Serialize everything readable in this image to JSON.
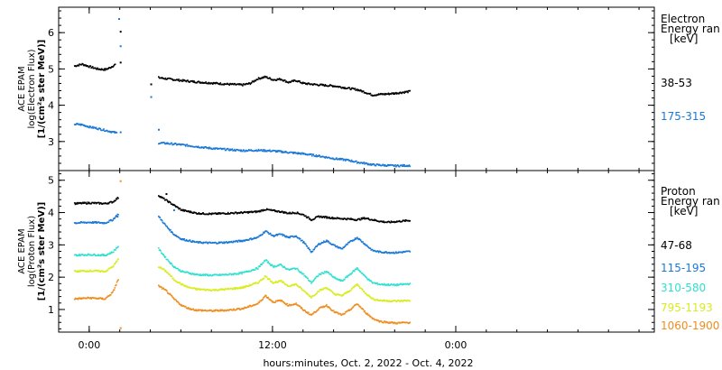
{
  "chart_data": [
    {
      "type": "scatter",
      "panel": "top",
      "ylabel_lines": [
        "ACE EPAM",
        "log(Electron Flux)",
        "[1/(cm²s ster MeV)]"
      ],
      "ylim": [
        2.2,
        6.7
      ],
      "yticks": [
        3,
        4,
        5,
        6
      ],
      "legend_title": [
        "Electron",
        "Energy ran",
        "[keV]"
      ],
      "series": [
        {
          "name": "38-53",
          "color": "#000000",
          "points": [
            [
              -1.0,
              5.1
            ],
            [
              -0.5,
              5.15
            ],
            [
              0.0,
              5.08
            ],
            [
              0.5,
              5.02
            ],
            [
              1.0,
              5.0
            ],
            [
              1.3,
              5.05
            ],
            [
              1.7,
              5.15
            ],
            [
              4.5,
              4.78
            ],
            [
              5.0,
              4.75
            ],
            [
              6.0,
              4.7
            ],
            [
              7.0,
              4.66
            ],
            [
              8.0,
              4.63
            ],
            [
              9.0,
              4.6
            ],
            [
              10.0,
              4.58
            ],
            [
              10.5,
              4.62
            ],
            [
              11.0,
              4.75
            ],
            [
              11.5,
              4.8
            ],
            [
              12.0,
              4.72
            ],
            [
              12.5,
              4.74
            ],
            [
              13.0,
              4.65
            ],
            [
              13.5,
              4.7
            ],
            [
              14.0,
              4.62
            ],
            [
              15.0,
              4.58
            ],
            [
              16.0,
              4.55
            ],
            [
              17.0,
              4.48
            ],
            [
              17.5,
              4.45
            ],
            [
              18.0,
              4.38
            ],
            [
              18.5,
              4.3
            ],
            [
              19.0,
              4.32
            ],
            [
              19.5,
              4.33
            ],
            [
              20.0,
              4.35
            ],
            [
              21.0,
              4.4
            ]
          ]
        },
        {
          "name": "175-315",
          "color": "#1a78d6",
          "points": [
            [
              -1.0,
              3.5
            ],
            [
              -0.5,
              3.48
            ],
            [
              0.0,
              3.42
            ],
            [
              0.5,
              3.38
            ],
            [
              1.0,
              3.33
            ],
            [
              1.5,
              3.28
            ],
            [
              1.8,
              3.25
            ],
            [
              4.5,
              2.98
            ],
            [
              5.0,
              2.97
            ],
            [
              6.0,
              2.93
            ],
            [
              7.0,
              2.88
            ],
            [
              8.0,
              2.83
            ],
            [
              9.0,
              2.8
            ],
            [
              10.0,
              2.77
            ],
            [
              11.0,
              2.78
            ],
            [
              12.0,
              2.76
            ],
            [
              13.0,
              2.72
            ],
            [
              14.0,
              2.68
            ],
            [
              15.0,
              2.62
            ],
            [
              16.0,
              2.55
            ],
            [
              17.0,
              2.5
            ],
            [
              17.5,
              2.45
            ],
            [
              18.0,
              2.42
            ],
            [
              18.5,
              2.38
            ],
            [
              19.0,
              2.37
            ],
            [
              20.0,
              2.35
            ],
            [
              21.0,
              2.36
            ]
          ]
        }
      ],
      "scatter_points": [
        {
          "color": "#1a78d6",
          "xy": [
            [
              1.9,
              6.4
            ],
            [
              2.0,
              5.65
            ],
            [
              4.0,
              4.25
            ],
            [
              4.5,
              3.35
            ],
            [
              2.0,
              3.28
            ]
          ]
        },
        {
          "color": "#000000",
          "xy": [
            [
              2.0,
              6.05
            ],
            [
              4.0,
              4.6
            ],
            [
              2.0,
              5.2
            ]
          ]
        }
      ]
    },
    {
      "type": "scatter",
      "panel": "bottom",
      "ylabel_lines": [
        "ACE EPAM",
        "log(Proton Flux)",
        "[1/(cm²s ster MeV)]"
      ],
      "ylim": [
        0.3,
        5.3
      ],
      "yticks": [
        1,
        2,
        3,
        4,
        5
      ],
      "legend_title": [
        "Proton",
        "Energy ran",
        "[keV]"
      ],
      "series": [
        {
          "name": "47-68",
          "color": "#000000",
          "points": [
            [
              -1.0,
              4.3
            ],
            [
              0.0,
              4.32
            ],
            [
              1.0,
              4.3
            ],
            [
              1.5,
              4.35
            ],
            [
              1.9,
              4.5
            ],
            [
              4.5,
              4.55
            ],
            [
              5.0,
              4.4
            ],
            [
              5.5,
              4.25
            ],
            [
              6.0,
              4.1
            ],
            [
              6.5,
              4.05
            ],
            [
              7.0,
              4.0
            ],
            [
              8.0,
              3.98
            ],
            [
              9.0,
              4.0
            ],
            [
              10.0,
              4.02
            ],
            [
              11.0,
              4.05
            ],
            [
              11.5,
              4.12
            ],
            [
              12.0,
              4.08
            ],
            [
              12.5,
              4.05
            ],
            [
              13.0,
              4.0
            ],
            [
              13.5,
              4.02
            ],
            [
              14.0,
              3.95
            ],
            [
              14.5,
              3.8
            ],
            [
              15.0,
              3.9
            ],
            [
              16.0,
              3.85
            ],
            [
              17.0,
              3.82
            ],
            [
              17.5,
              3.8
            ],
            [
              18.0,
              3.85
            ],
            [
              18.5,
              3.8
            ],
            [
              19.0,
              3.75
            ],
            [
              19.5,
              3.72
            ],
            [
              20.0,
              3.74
            ],
            [
              21.0,
              3.78
            ]
          ]
        },
        {
          "name": "115-195",
          "color": "#1a78d6",
          "points": [
            [
              -1.0,
              3.7
            ],
            [
              0.0,
              3.72
            ],
            [
              1.0,
              3.7
            ],
            [
              1.5,
              3.8
            ],
            [
              1.9,
              4.0
            ],
            [
              4.5,
              3.9
            ],
            [
              5.0,
              3.6
            ],
            [
              5.5,
              3.35
            ],
            [
              6.0,
              3.2
            ],
            [
              6.5,
              3.15
            ],
            [
              7.0,
              3.1
            ],
            [
              8.0,
              3.08
            ],
            [
              9.0,
              3.1
            ],
            [
              10.0,
              3.15
            ],
            [
              11.0,
              3.25
            ],
            [
              11.5,
              3.45
            ],
            [
              12.0,
              3.3
            ],
            [
              12.5,
              3.35
            ],
            [
              13.0,
              3.25
            ],
            [
              13.5,
              3.3
            ],
            [
              14.0,
              3.1
            ],
            [
              14.5,
              2.8
            ],
            [
              15.0,
              3.05
            ],
            [
              15.5,
              3.15
            ],
            [
              16.0,
              3.0
            ],
            [
              16.5,
              2.9
            ],
            [
              17.0,
              3.1
            ],
            [
              17.5,
              3.25
            ],
            [
              18.0,
              3.05
            ],
            [
              18.5,
              2.85
            ],
            [
              19.0,
              2.8
            ],
            [
              20.0,
              2.78
            ],
            [
              21.0,
              2.82
            ]
          ]
        },
        {
          "name": "310-580",
          "color": "#30e0d0",
          "points": [
            [
              -1.0,
              2.7
            ],
            [
              0.0,
              2.72
            ],
            [
              1.0,
              2.7
            ],
            [
              1.5,
              2.8
            ],
            [
              1.9,
              3.0
            ],
            [
              4.5,
              2.9
            ],
            [
              5.0,
              2.6
            ],
            [
              5.5,
              2.35
            ],
            [
              6.0,
              2.2
            ],
            [
              6.5,
              2.15
            ],
            [
              7.0,
              2.1
            ],
            [
              8.0,
              2.08
            ],
            [
              9.0,
              2.1
            ],
            [
              10.0,
              2.15
            ],
            [
              11.0,
              2.3
            ],
            [
              11.5,
              2.55
            ],
            [
              12.0,
              2.35
            ],
            [
              12.5,
              2.4
            ],
            [
              13.0,
              2.25
            ],
            [
              13.5,
              2.3
            ],
            [
              14.0,
              2.1
            ],
            [
              14.5,
              1.85
            ],
            [
              15.0,
              2.1
            ],
            [
              15.5,
              2.2
            ],
            [
              16.0,
              2.0
            ],
            [
              16.5,
              1.9
            ],
            [
              17.0,
              2.1
            ],
            [
              17.5,
              2.3
            ],
            [
              18.0,
              2.05
            ],
            [
              18.5,
              1.85
            ],
            [
              19.0,
              1.8
            ],
            [
              20.0,
              1.78
            ],
            [
              21.0,
              1.82
            ]
          ]
        },
        {
          "name": "795-1193",
          "color": "#d8ec20",
          "points": [
            [
              -1.0,
              2.2
            ],
            [
              0.0,
              2.22
            ],
            [
              1.0,
              2.2
            ],
            [
              1.5,
              2.35
            ],
            [
              1.9,
              2.6
            ],
            [
              4.5,
              2.35
            ],
            [
              5.0,
              2.2
            ],
            [
              5.5,
              1.95
            ],
            [
              6.0,
              1.8
            ],
            [
              6.5,
              1.7
            ],
            [
              7.0,
              1.65
            ],
            [
              8.0,
              1.62
            ],
            [
              9.0,
              1.65
            ],
            [
              10.0,
              1.7
            ],
            [
              11.0,
              1.85
            ],
            [
              11.5,
              2.05
            ],
            [
              12.0,
              1.85
            ],
            [
              12.5,
              1.9
            ],
            [
              13.0,
              1.75
            ],
            [
              13.5,
              1.8
            ],
            [
              14.0,
              1.6
            ],
            [
              14.5,
              1.4
            ],
            [
              15.0,
              1.6
            ],
            [
              15.5,
              1.7
            ],
            [
              16.0,
              1.5
            ],
            [
              16.5,
              1.45
            ],
            [
              17.0,
              1.6
            ],
            [
              17.5,
              1.8
            ],
            [
              18.0,
              1.55
            ],
            [
              18.5,
              1.35
            ],
            [
              19.0,
              1.3
            ],
            [
              20.0,
              1.28
            ],
            [
              21.0,
              1.3
            ]
          ]
        },
        {
          "name": "1060-1900",
          "color": "#f08c1e",
          "points": [
            [
              -1.0,
              1.35
            ],
            [
              0.0,
              1.38
            ],
            [
              1.0,
              1.35
            ],
            [
              1.5,
              1.55
            ],
            [
              1.9,
              2.0
            ],
            [
              4.5,
              1.75
            ],
            [
              5.0,
              1.6
            ],
            [
              5.5,
              1.35
            ],
            [
              6.0,
              1.15
            ],
            [
              6.5,
              1.05
            ],
            [
              7.0,
              1.0
            ],
            [
              8.0,
              0.98
            ],
            [
              9.0,
              1.0
            ],
            [
              10.0,
              1.05
            ],
            [
              11.0,
              1.2
            ],
            [
              11.5,
              1.45
            ],
            [
              12.0,
              1.25
            ],
            [
              12.5,
              1.3
            ],
            [
              13.0,
              1.15
            ],
            [
              13.5,
              1.2
            ],
            [
              14.0,
              1.0
            ],
            [
              14.5,
              0.85
            ],
            [
              15.0,
              1.05
            ],
            [
              15.5,
              1.15
            ],
            [
              16.0,
              0.95
            ],
            [
              16.5,
              0.85
            ],
            [
              17.0,
              1.0
            ],
            [
              17.5,
              1.2
            ],
            [
              18.0,
              0.95
            ],
            [
              18.5,
              0.75
            ],
            [
              19.0,
              0.65
            ],
            [
              20.0,
              0.6
            ],
            [
              21.0,
              0.62
            ]
          ]
        }
      ],
      "scatter_points": [
        {
          "color": "#f08c1e",
          "xy": [
            [
              2.0,
              0.45
            ],
            [
              2.0,
              5.0
            ]
          ]
        },
        {
          "color": "#1a78d6",
          "xy": [
            [
              1.8,
              3.9
            ],
            [
              5.5,
              4.1
            ]
          ]
        },
        {
          "color": "#000000",
          "xy": [
            [
              5.0,
              4.6
            ]
          ]
        }
      ]
    }
  ],
  "x_axis": {
    "xlim": [
      -2.0,
      37.0
    ],
    "tick_positions": [
      0,
      12,
      24
    ],
    "tick_labels": [
      "0:00",
      "12:00",
      "0:00"
    ],
    "xlabel": "hours:minutes, Oct.  2, 2022 - Oct.  4, 2022"
  },
  "styles": {
    "frame_color": "#000000",
    "background": "#ffffff"
  }
}
